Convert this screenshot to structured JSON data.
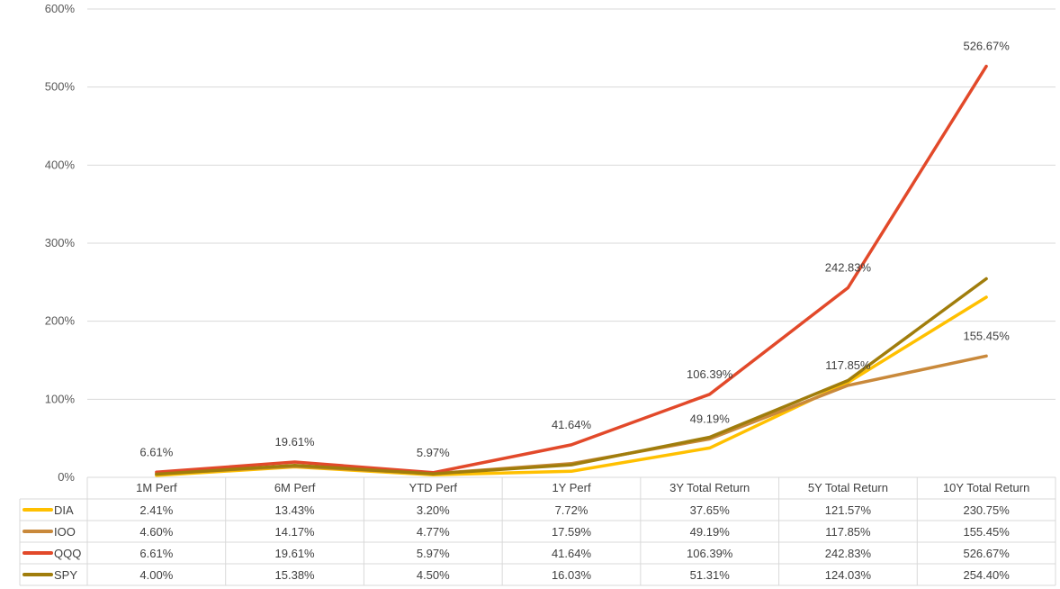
{
  "chart_data": {
    "type": "line",
    "categories": [
      "1M Perf",
      "6M Perf",
      "YTD Perf",
      "1Y Perf",
      "3Y Total Return",
      "5Y Total Return",
      "10Y Total Return"
    ],
    "y_ticks": [
      "0%",
      "100%",
      "200%",
      "300%",
      "400%",
      "500%",
      "600%"
    ],
    "ylim": [
      0,
      600
    ],
    "grid": true,
    "legend": "data-table-left",
    "series": [
      {
        "name": "DIA",
        "color": "#FFC000",
        "values": [
          2.41,
          13.43,
          3.2,
          7.72,
          37.65,
          121.57,
          230.75
        ],
        "table": [
          "2.41%",
          "13.43%",
          "3.20%",
          "7.72%",
          "37.65%",
          "121.57%",
          "230.75%"
        ]
      },
      {
        "name": "IOO",
        "color": "#C9893B",
        "values": [
          4.6,
          14.17,
          4.77,
          17.59,
          49.19,
          117.85,
          155.45
        ],
        "table": [
          "4.60%",
          "14.17%",
          "4.77%",
          "17.59%",
          "49.19%",
          "117.85%",
          "155.45%"
        ]
      },
      {
        "name": "QQQ",
        "color": "#E2492A",
        "values": [
          6.61,
          19.61,
          5.97,
          41.64,
          106.39,
          242.83,
          526.67
        ],
        "table": [
          "6.61%",
          "19.61%",
          "5.97%",
          "41.64%",
          "106.39%",
          "242.83%",
          "526.67%"
        ]
      },
      {
        "name": "SPY",
        "color": "#A07D0C",
        "values": [
          4.0,
          15.38,
          4.5,
          16.03,
          51.31,
          124.03,
          254.4
        ],
        "table": [
          "4.00%",
          "15.38%",
          "4.50%",
          "16.03%",
          "51.31%",
          "124.03%",
          "254.40%"
        ]
      }
    ],
    "data_labels": [
      {
        "series": "QQQ",
        "index": 0,
        "text": "6.61%"
      },
      {
        "series": "QQQ",
        "index": 1,
        "text": "19.61%"
      },
      {
        "series": "QQQ",
        "index": 2,
        "text": "5.97%"
      },
      {
        "series": "QQQ",
        "index": 3,
        "text": "41.64%"
      },
      {
        "series": "QQQ",
        "index": 4,
        "text": "106.39%"
      },
      {
        "series": "QQQ",
        "index": 5,
        "text": "242.83%"
      },
      {
        "series": "QQQ",
        "index": 6,
        "text": "526.67%"
      },
      {
        "series": "IOO",
        "index": 4,
        "text": "49.19%"
      },
      {
        "series": "IOO",
        "index": 5,
        "text": "117.85%"
      },
      {
        "series": "IOO",
        "index": 6,
        "text": "155.45%"
      }
    ]
  }
}
